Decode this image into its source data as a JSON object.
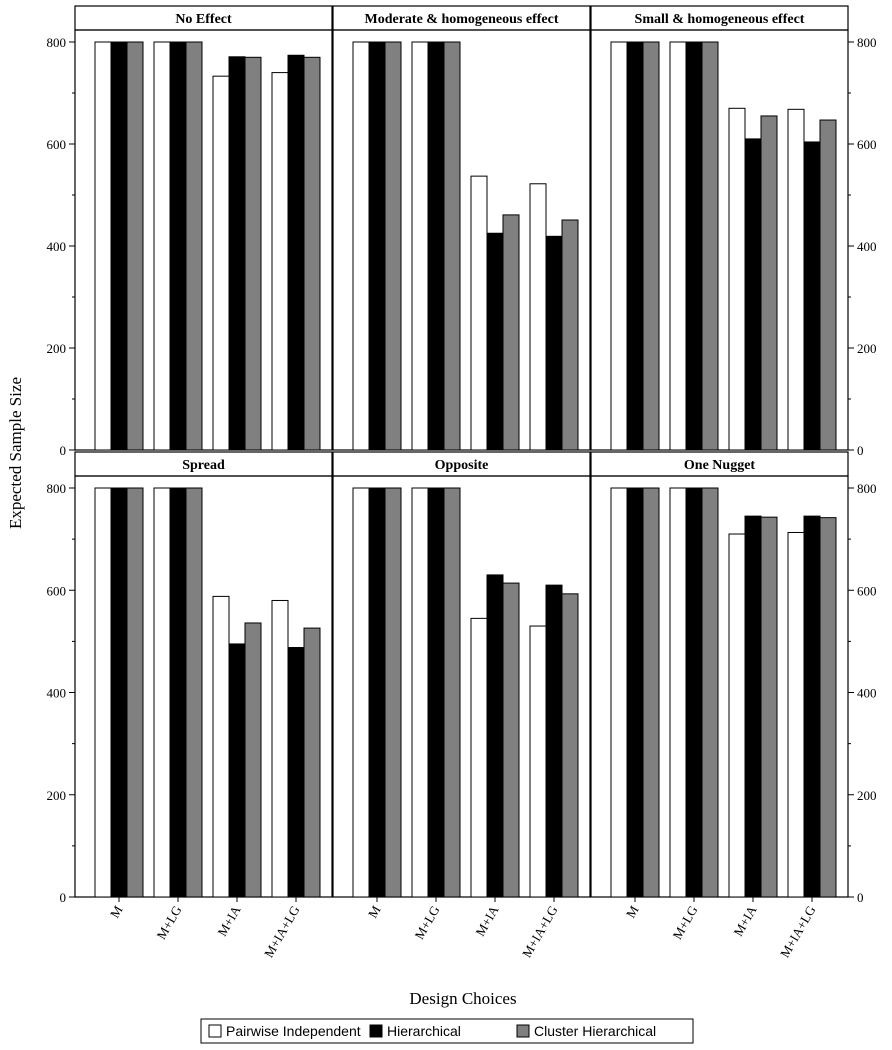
{
  "chart_data": {
    "type": "bar",
    "ylabel": "Expected Sample Size",
    "xlabel": "Design Choices",
    "ylim": [
      0,
      800
    ],
    "yticks": [
      0,
      200,
      400,
      600,
      800
    ],
    "categories": [
      "M",
      "M+LG",
      "M+IA",
      "M+IA+LG"
    ],
    "colors": [
      "#ffffff",
      "#000000",
      "#808080"
    ],
    "legend": [
      "Pairwise Independent",
      "Hierarchical",
      "Cluster Hierarchical"
    ],
    "legend_position": "bottom",
    "panels": [
      {
        "title": "No Effect",
        "series": [
          {
            "name": "Pairwise Independent",
            "values": [
              800,
              800,
              733,
              740
            ]
          },
          {
            "name": "Hierarchical",
            "values": [
              800,
              800,
              771,
              774
            ]
          },
          {
            "name": "Cluster Hierarchical",
            "values": [
              800,
              800,
              770,
              770
            ]
          }
        ]
      },
      {
        "title": "Moderate & homogeneous effect",
        "series": [
          {
            "name": "Pairwise Independent",
            "values": [
              800,
              800,
              537,
              522
            ]
          },
          {
            "name": "Hierarchical",
            "values": [
              800,
              800,
              425,
              419
            ]
          },
          {
            "name": "Cluster Hierarchical",
            "values": [
              800,
              800,
              461,
              451
            ]
          }
        ]
      },
      {
        "title": "Small & homogeneous effect",
        "series": [
          {
            "name": "Pairwise Independent",
            "values": [
              800,
              800,
              670,
              668
            ]
          },
          {
            "name": "Hierarchical",
            "values": [
              800,
              800,
              610,
              604
            ]
          },
          {
            "name": "Cluster Hierarchical",
            "values": [
              800,
              800,
              655,
              647
            ]
          }
        ]
      },
      {
        "title": "Spread",
        "series": [
          {
            "name": "Pairwise Independent",
            "values": [
              800,
              800,
              588,
              580
            ]
          },
          {
            "name": "Hierarchical",
            "values": [
              800,
              800,
              495,
              488
            ]
          },
          {
            "name": "Cluster Hierarchical",
            "values": [
              800,
              800,
              536,
              526
            ]
          }
        ]
      },
      {
        "title": "Opposite",
        "series": [
          {
            "name": "Pairwise Independent",
            "values": [
              800,
              800,
              545,
              530
            ]
          },
          {
            "name": "Hierarchical",
            "values": [
              800,
              800,
              630,
              610
            ]
          },
          {
            "name": "Cluster Hierarchical",
            "values": [
              800,
              800,
              614,
              593
            ]
          }
        ]
      },
      {
        "title": "One Nugget",
        "series": [
          {
            "name": "Pairwise Independent",
            "values": [
              800,
              800,
              710,
              713
            ]
          },
          {
            "name": "Hierarchical",
            "values": [
              800,
              800,
              745,
              745
            ]
          },
          {
            "name": "Cluster Hierarchical",
            "values": [
              800,
              800,
              743,
              742
            ]
          }
        ]
      }
    ]
  }
}
